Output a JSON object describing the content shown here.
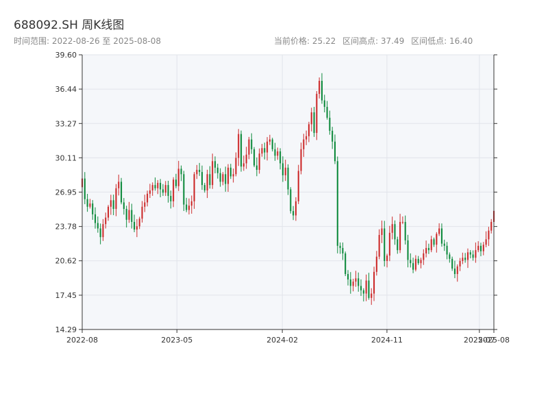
{
  "title": "688092.SH 周K线图",
  "subtitle": {
    "range_label": "时间范围: 2022-08-26 至 2025-08-08",
    "current_price": "当前价格: 25.22",
    "range_high": "区间高点: 37.49",
    "range_low": "区间低点: 16.40"
  },
  "chart_data": {
    "type": "candlestick",
    "period": "weekly",
    "ylim": [
      14.29,
      39.6
    ],
    "yticks": [
      14.29,
      17.45,
      20.62,
      23.78,
      26.95,
      30.11,
      33.27,
      36.44,
      39.6
    ],
    "ytick_labels": [
      "14.29",
      "17.45",
      "20.62",
      "23.78",
      "26.95",
      "30.11",
      "33.27",
      "36.44",
      "39.60"
    ],
    "xlim": [
      "2022-08-26",
      "2025-08-08"
    ],
    "xticks": [
      {
        "date": "2022-08-26",
        "label": "2022-08"
      },
      {
        "date": "2023-05-01",
        "label": "2023-05"
      },
      {
        "date": "2024-02-01",
        "label": "2024-02"
      },
      {
        "date": "2024-11-01",
        "label": "2024-11"
      },
      {
        "date": "2025-07-01",
        "label": "2025-07"
      },
      {
        "date": "2025-08-08",
        "label": "2025-08"
      }
    ],
    "up_color": "#cc2a2a",
    "down_color": "#0e8a3c",
    "grid": true,
    "closes": [
      28.2,
      26.3,
      25.6,
      25.9,
      24.9,
      24.1,
      23.6,
      22.8,
      24.0,
      24.6,
      25.6,
      26.2,
      25.4,
      27.3,
      27.9,
      26.0,
      25.4,
      24.4,
      25.3,
      24.2,
      23.5,
      23.8,
      24.5,
      25.6,
      26.0,
      26.8,
      27.1,
      27.6,
      27.3,
      27.8,
      27.2,
      26.9,
      27.6,
      26.6,
      26.1,
      28.1,
      27.5,
      29.1,
      28.6,
      25.8,
      25.3,
      25.7,
      26.1,
      28.6,
      29.0,
      28.8,
      27.6,
      27.1,
      28.6,
      27.6,
      29.8,
      29.2,
      28.7,
      27.9,
      28.6,
      27.7,
      29.2,
      28.4,
      28.6,
      30.1,
      32.3,
      29.3,
      29.6,
      30.4,
      31.8,
      30.9,
      29.4,
      29.0,
      30.5,
      31.0,
      30.6,
      31.6,
      31.8,
      30.9,
      30.3,
      30.7,
      29.6,
      28.5,
      29.2,
      27.2,
      25.2,
      24.8,
      26.1,
      28.9,
      30.9,
      31.8,
      32.1,
      33.2,
      34.3,
      32.4,
      36.0,
      37.2,
      35.4,
      34.8,
      33.8,
      32.6,
      31.6,
      29.8,
      22.0,
      21.8,
      21.3,
      19.4,
      18.9,
      18.3,
      18.7,
      19.0,
      18.3,
      17.9,
      17.6,
      18.8,
      17.2,
      17.6,
      19.6,
      21.0,
      23.0,
      23.6,
      20.6,
      21.1,
      23.2,
      24.0,
      22.6,
      21.6,
      24.2,
      24.2,
      22.5,
      20.7,
      20.4,
      19.8,
      20.8,
      20.4,
      20.7,
      21.3,
      21.8,
      21.6,
      22.6,
      22.1,
      23.1,
      23.6,
      22.2,
      22.0,
      21.2,
      20.8,
      19.9,
      19.4,
      20.1,
      20.6,
      20.9,
      20.7,
      21.4,
      21.2,
      20.9,
      21.6,
      22.0,
      21.5,
      22.1,
      22.6,
      23.4,
      24.2,
      25.22
    ]
  }
}
